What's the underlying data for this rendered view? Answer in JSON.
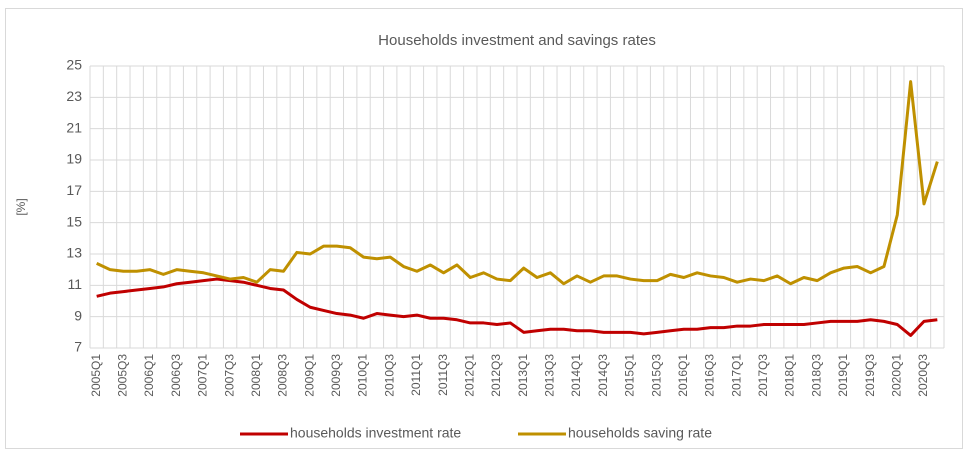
{
  "chart_data": {
    "type": "line",
    "title": "Households investment and savings rates",
    "ylabel": "[%]",
    "categories": [
      "2005Q1",
      null,
      "2005Q3",
      null,
      "2006Q1",
      null,
      "2006Q3",
      null,
      "2007Q1",
      null,
      "2007Q3",
      null,
      "2008Q1",
      null,
      "2008Q3",
      null,
      "2009Q1",
      null,
      "2009Q3",
      null,
      "2010Q1",
      null,
      "2010Q3",
      null,
      "2011Q1",
      null,
      "2011Q3",
      null,
      "2012Q1",
      null,
      "2012Q3",
      null,
      "2013Q1",
      null,
      "2013Q3",
      null,
      "2014Q1",
      null,
      "2014Q3",
      null,
      "2015Q1",
      null,
      "2015Q3",
      null,
      "2016Q1",
      null,
      "2016Q3",
      null,
      "2017Q1",
      null,
      "2017Q3",
      null,
      "2018Q1",
      null,
      "2018Q3",
      null,
      "2019Q1",
      null,
      "2019Q3",
      null,
      "2020Q1",
      null,
      "2020Q3",
      null
    ],
    "series": [
      {
        "name": "households investment rate",
        "color": "#c00000",
        "values": [
          10.3,
          10.5,
          10.6,
          10.7,
          10.8,
          10.9,
          11.1,
          11.2,
          11.3,
          11.4,
          11.3,
          11.2,
          11.0,
          10.8,
          10.7,
          10.1,
          9.6,
          9.4,
          9.2,
          9.1,
          8.9,
          9.2,
          9.1,
          9.0,
          9.1,
          8.9,
          8.9,
          8.8,
          8.6,
          8.6,
          8.5,
          8.6,
          8.0,
          8.1,
          8.2,
          8.2,
          8.1,
          8.1,
          8.0,
          8.0,
          8.0,
          7.9,
          8.0,
          8.1,
          8.2,
          8.2,
          8.3,
          8.3,
          8.4,
          8.4,
          8.5,
          8.5,
          8.5,
          8.5,
          8.6,
          8.7,
          8.7,
          8.7,
          8.8,
          8.7,
          8.5,
          7.8,
          8.7,
          8.8
        ]
      },
      {
        "name": "households saving rate",
        "color": "#bf9000",
        "values": [
          12.4,
          12.0,
          11.9,
          11.9,
          12.0,
          11.7,
          12.0,
          11.9,
          11.8,
          11.6,
          11.4,
          11.5,
          11.2,
          12.0,
          11.9,
          13.1,
          13.0,
          13.5,
          13.5,
          13.4,
          12.8,
          12.7,
          12.8,
          12.2,
          11.9,
          12.3,
          11.8,
          12.3,
          11.5,
          11.8,
          11.4,
          11.3,
          12.1,
          11.5,
          11.8,
          11.1,
          11.6,
          11.2,
          11.6,
          11.6,
          11.4,
          11.3,
          11.3,
          11.7,
          11.5,
          11.8,
          11.6,
          11.5,
          11.2,
          11.4,
          11.3,
          11.6,
          11.1,
          11.5,
          11.3,
          11.8,
          12.1,
          12.2,
          11.8,
          12.2,
          15.5,
          24.0,
          16.2,
          18.9
        ]
      }
    ],
    "ylim": [
      7,
      25
    ],
    "yticks": [
      7,
      9,
      11,
      13,
      15,
      17,
      19,
      21,
      23,
      25
    ],
    "grid": true,
    "legend": "bottom"
  }
}
